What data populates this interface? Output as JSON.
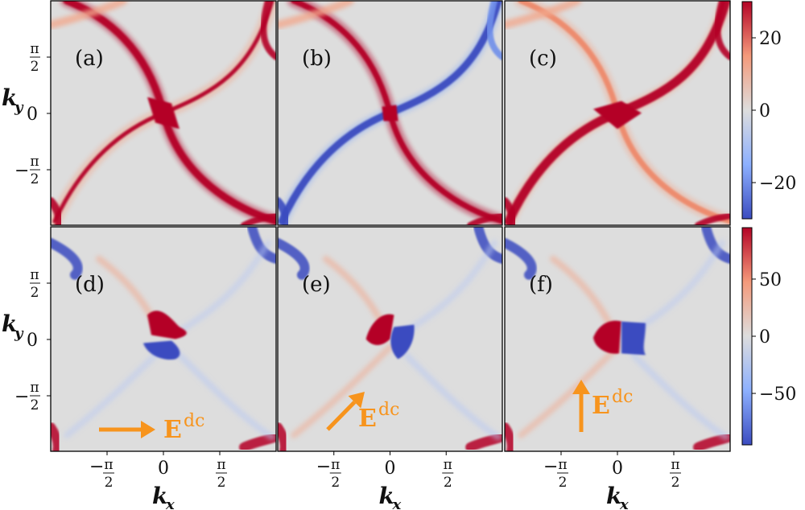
{
  "chart_data": [
    {
      "type": "heatmap",
      "rows": [
        {
          "colorbar": {
            "ticks": [
              20,
              0,
              -20
            ],
            "tick_labels": [
              "20",
              "0",
              "−20"
            ],
            "range": [
              -30,
              30
            ]
          },
          "panels": [
            {
              "label": "(a)",
              "variant": "a"
            },
            {
              "label": "(b)",
              "variant": "b"
            },
            {
              "label": "(c)",
              "variant": "c"
            }
          ]
        },
        {
          "colorbar": {
            "ticks": [
              50,
              0,
              -50
            ],
            "tick_labels": [
              "50",
              "0",
              "−50"
            ],
            "range": [
              -95,
              95
            ]
          },
          "panels": [
            {
              "label": "(d)",
              "variant": "d",
              "field_label": "E",
              "field_sup": "dc",
              "field_direction": "right"
            },
            {
              "label": "(e)",
              "variant": "e",
              "field_label": "E",
              "field_sup": "dc",
              "field_direction": "diagonal"
            },
            {
              "label": "(f)",
              "variant": "f",
              "field_label": "E",
              "field_sup": "dc",
              "field_direction": "up"
            }
          ]
        }
      ],
      "xlabel": "k",
      "xlabel_sub": "x",
      "ylabel": "k",
      "ylabel_sub": "y",
      "x_ticks": [
        {
          "sign": "−",
          "num": "π",
          "den": "2"
        },
        {
          "sign": "",
          "num": "0",
          "den": ""
        },
        {
          "sign": "",
          "num": "π",
          "den": "2"
        }
      ],
      "y_ticks": [
        {
          "sign": "",
          "num": "π",
          "den": "2"
        },
        {
          "sign": "",
          "num": "0",
          "den": ""
        },
        {
          "sign": "−",
          "num": "π",
          "den": "2"
        }
      ],
      "colormap": [
        "#3b4cc0",
        "#dddddd",
        "#b40426"
      ],
      "arrow_color": "#f7941d"
    }
  ]
}
